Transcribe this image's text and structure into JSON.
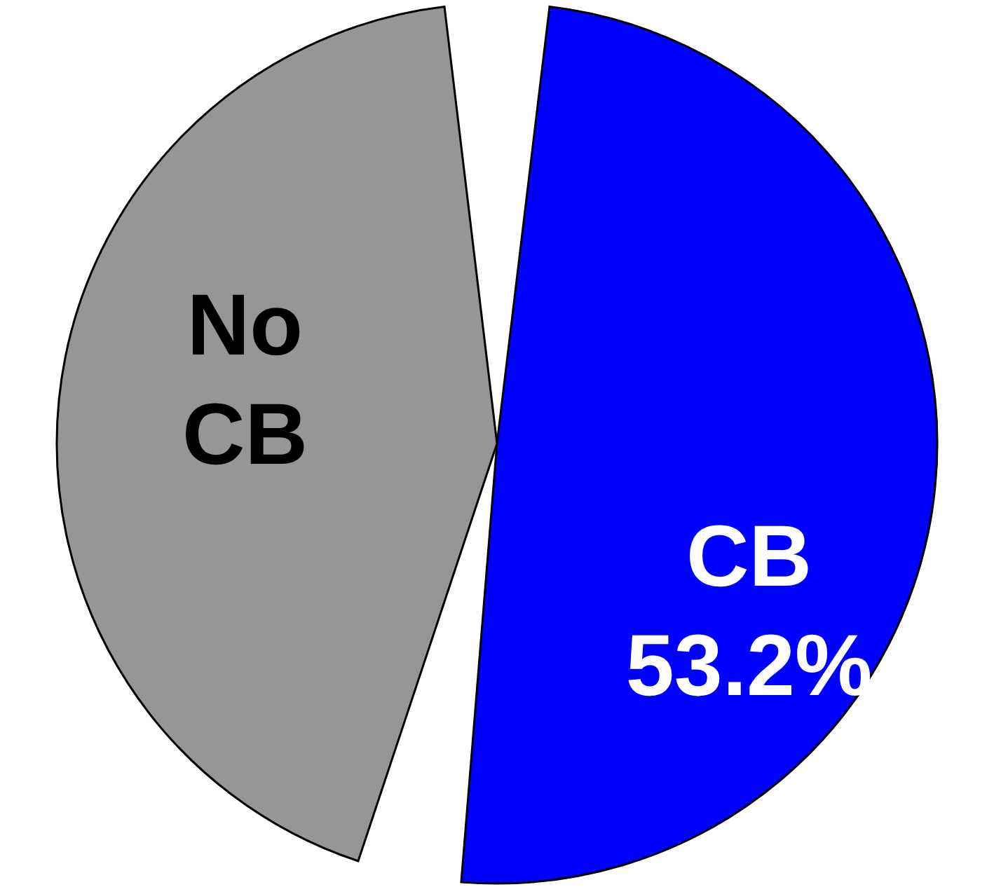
{
  "chart_data": {
    "type": "pie",
    "categories": [
      "CB",
      "No CB"
    ],
    "values": [
      53.2,
      46.8
    ],
    "colors": [
      "#0000ff",
      "#969696"
    ],
    "value_labels": [
      "53.2%",
      null
    ]
  }
}
